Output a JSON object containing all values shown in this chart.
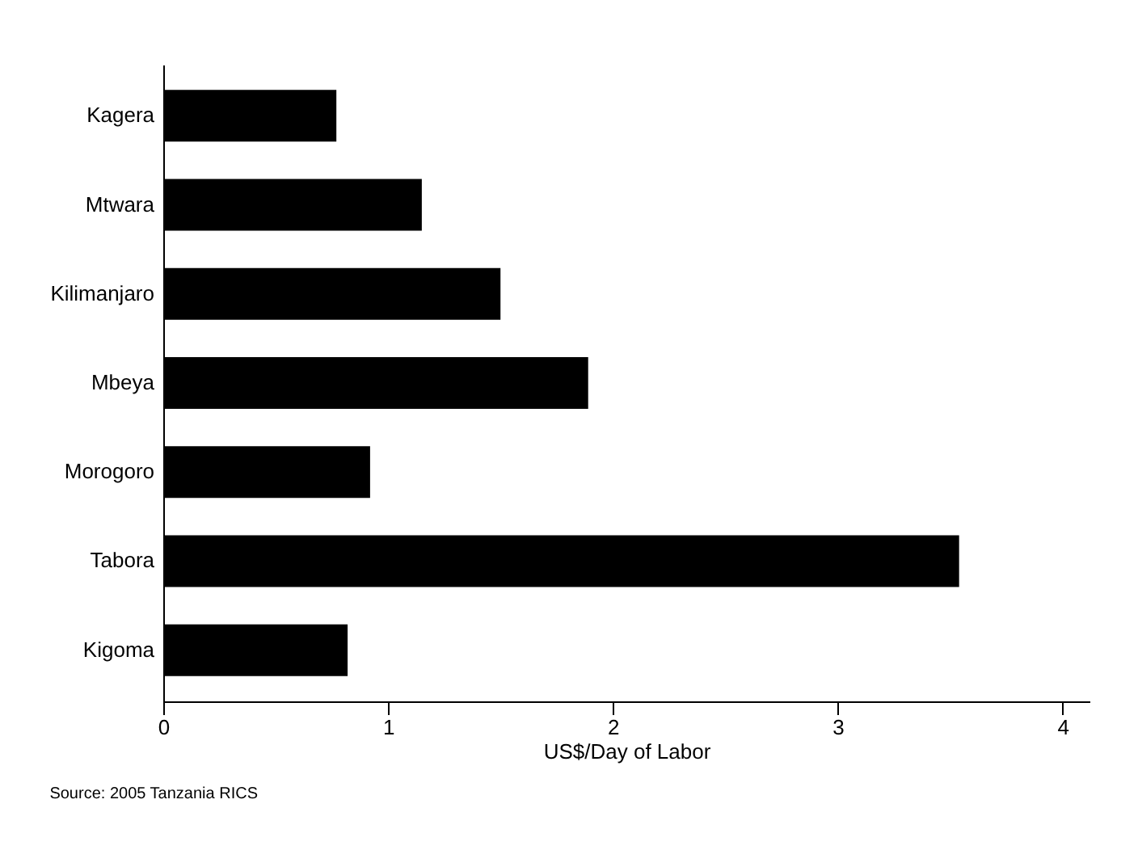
{
  "chart_data": {
    "type": "bar",
    "orientation": "horizontal",
    "categories": [
      "Kagera",
      "Mtwara",
      "Kilimanjaro",
      "Mbeya",
      "Morogoro",
      "Tabora",
      "Kigoma"
    ],
    "values": [
      0.77,
      1.15,
      1.5,
      1.89,
      0.92,
      3.54,
      0.82
    ],
    "color": "#000000",
    "xlim": [
      0,
      4.12
    ],
    "xticks": [
      0,
      1,
      2,
      3,
      4
    ],
    "xlabel": "US$/Day of Labor",
    "grid": false,
    "annotations": [
      "Source: 2005 Tanzania RICS"
    ]
  }
}
